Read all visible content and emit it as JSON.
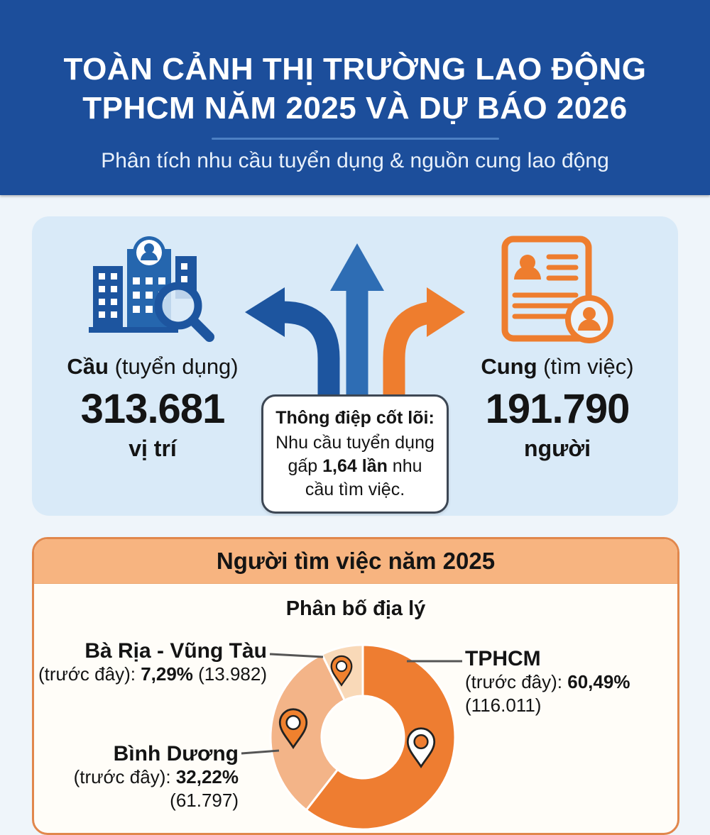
{
  "header": {
    "title_line1": "TOÀN CẢNH THỊ TRƯỜNG LAO ĐỘNG",
    "title_line2": "TPHCM NĂM 2025 VÀ DỰ BÁO 2026",
    "subtitle": "Phân tích nhu cầu tuyển dụng & nguồn cung lao động"
  },
  "overview": {
    "demand": {
      "label_bold": "Cầu",
      "label_rest": " (tuyển dụng)",
      "value": "313.681",
      "unit": "vị trí"
    },
    "supply": {
      "label_bold": "Cung",
      "label_rest": " (tìm việc)",
      "value": "191.790",
      "unit": "người"
    },
    "message": {
      "title": "Thông điệp cốt lõi:",
      "line1": "Nhu cầu tuyển dụng",
      "line2_pre": "gấp ",
      "line2_bold": "1,64 lần",
      "line2_post": " nhu",
      "line3": "cầu tìm việc."
    }
  },
  "jobseekers": {
    "section_title": "Người tìm việc năm 2025",
    "chart_title": "Phân bố địa lý",
    "labels": {
      "baria": {
        "name": "Bà Rịa - Vũng Tàu",
        "pre": "(trước đây): ",
        "bold": "7,29%",
        "post": " (13.982)"
      },
      "tphcm": {
        "name": "TPHCM",
        "pre": "(trước đây): ",
        "bold": "60,49%",
        "line2": "(116.011)"
      },
      "binhduong": {
        "name": "Bình Dương",
        "pre": "(trước đây): ",
        "bold": "32,22%",
        "line2": "(61.797)"
      }
    }
  },
  "chart_data": {
    "type": "pie",
    "subtype": "donut",
    "title": "Phân bố địa lý",
    "start_angle_deg": 0,
    "direction": "clockwise",
    "slices": [
      {
        "name": "TPHCM (trước đây)",
        "pct": 60.49,
        "count": 116011,
        "color": "#EE7D31"
      },
      {
        "name": "Bình Dương (trước đây)",
        "pct": 32.22,
        "count": 61797,
        "color": "#F3B488"
      },
      {
        "name": "Bà Rịa - Vũng Tàu (trước đây)",
        "pct": 7.29,
        "count": 13982,
        "color": "#F9D9B8"
      }
    ]
  },
  "colors": {
    "header_bg": "#1C4E9B",
    "header_divider": "#4C80C4",
    "card_blue_bg": "#D9EAF8",
    "arrow_blue_dark": "#1D559F",
    "arrow_blue": "#2E6DB4",
    "arrow_orange": "#EE7D2E",
    "card_orange_border": "#E1874C",
    "card_orange_bar": "#F7B480",
    "donut_dark": "#EE7D31",
    "donut_mid": "#F3B488",
    "donut_light": "#F9D9B8"
  }
}
